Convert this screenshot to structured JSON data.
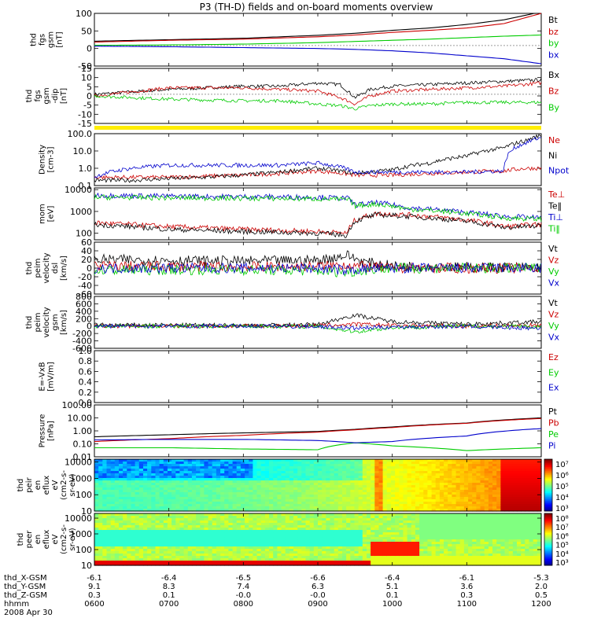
{
  "title": "P3 (TH-D) fields and on-board moments overview",
  "date": "2008 Apr 30",
  "footer": {
    "rows": [
      {
        "label": "thd_X-GSM",
        "values": [
          "-6.1",
          "-6.4",
          "-6.5",
          "-6.6",
          "-6.4",
          "-6.1",
          "-5.3"
        ]
      },
      {
        "label": "thd_Y-GSM",
        "values": [
          "9.1",
          "8.3",
          "7.4",
          "6.3",
          "5.1",
          "3.6",
          "2.0"
        ]
      },
      {
        "label": "thd_Z-GSM",
        "values": [
          "0.3",
          "0.1",
          "-0.0",
          "-0.0",
          "0.1",
          "0.3",
          "0.5"
        ]
      },
      {
        "label": "hhmm",
        "values": [
          "0600",
          "0700",
          "0800",
          "0900",
          "1000",
          "1100",
          "1200"
        ]
      }
    ]
  },
  "chart_data": [
    {
      "type": "line",
      "ylabel": [
        "thd",
        "fgs",
        "gsm",
        "[nT]"
      ],
      "ylim": [
        -70,
        110
      ],
      "yticks": [
        "100",
        "50",
        "0",
        "-50"
      ],
      "legend": [
        {
          "name": "Bt",
          "color": "#000000"
        },
        {
          "name": "bz",
          "color": "#cc0000"
        },
        {
          "name": "by",
          "color": "#00cc00"
        },
        {
          "name": "bx",
          "color": "#0000cc"
        }
      ],
      "x": [
        6.0,
        7.0,
        8.0,
        9.0,
        9.5,
        10.0,
        10.5,
        11.0,
        11.5,
        12.0
      ],
      "series": [
        {
          "name": "Bt",
          "values": [
            15,
            20,
            25,
            35,
            42,
            52,
            60,
            72,
            88,
            115
          ]
        },
        {
          "name": "bz",
          "values": [
            12,
            18,
            22,
            30,
            36,
            45,
            52,
            60,
            75,
            110
          ]
        },
        {
          "name": "by",
          "values": [
            1,
            2,
            5,
            10,
            14,
            18,
            22,
            27,
            32,
            36
          ]
        },
        {
          "name": "bx",
          "values": [
            -2,
            -4,
            -7,
            -10,
            -13,
            -18,
            -25,
            -35,
            -45,
            -62
          ]
        }
      ]
    },
    {
      "type": "line",
      "ylabel": [
        "thd",
        "fgs",
        "gsm",
        "-dip",
        "[nT]"
      ],
      "ylim": [
        -18,
        16
      ],
      "yticks": [
        "15",
        "10",
        "5",
        "0",
        "-5",
        "-10",
        "-15"
      ],
      "legend": [
        {
          "name": "Bx",
          "color": "#000000"
        },
        {
          "name": "Bz",
          "color": "#cc0000"
        },
        {
          "name": "By",
          "color": "#00cc00"
        }
      ],
      "x": [
        6.0,
        7.0,
        8.0,
        8.5,
        9.0,
        9.3,
        9.5,
        9.7,
        10.0,
        10.5,
        11.0,
        11.5,
        12.0
      ],
      "series": [
        {
          "name": "Bx",
          "values": [
            0,
            3,
            5,
            5,
            7,
            6,
            -2,
            3,
            5,
            6,
            7,
            8,
            9
          ]
        },
        {
          "name": "Bz",
          "values": [
            -1,
            4,
            4,
            3,
            2,
            -2,
            -6,
            -1,
            2,
            3,
            4,
            5,
            7
          ]
        },
        {
          "name": "By",
          "values": [
            -1,
            -3,
            -4,
            -4,
            -6,
            -7,
            -9,
            -7,
            -6,
            -6,
            -5,
            -5,
            -5
          ]
        }
      ]
    },
    {
      "type": "line",
      "ylabel": [
        "Density",
        "[cm-3]"
      ],
      "ylim": [
        0.1,
        100.0
      ],
      "yscale": "log",
      "yticks": [
        "100.0",
        "10.0",
        "1.0",
        "0.1"
      ],
      "legend": [
        {
          "name": "Ne",
          "color": "#cc0000"
        },
        {
          "name": "Ni",
          "color": "#000000"
        },
        {
          "name": "Npot",
          "color": "#0000cc"
        }
      ],
      "x": [
        6.0,
        6.5,
        7.0,
        7.5,
        8.0,
        8.5,
        9.0,
        9.5,
        10.0,
        10.5,
        11.0,
        11.5,
        11.8,
        12.0
      ],
      "series": [
        {
          "name": "Ne",
          "values": [
            0.3,
            0.3,
            0.3,
            0.35,
            0.4,
            0.5,
            0.7,
            0.4,
            0.4,
            0.5,
            0.6,
            0.7,
            1.0,
            1.0
          ]
        },
        {
          "name": "Ni",
          "values": [
            0.2,
            0.2,
            0.25,
            0.3,
            0.4,
            0.6,
            1.0,
            0.5,
            0.8,
            2.0,
            5.0,
            15.0,
            40.0,
            80.0
          ]
        },
        {
          "name": "Npot",
          "values": [
            0.3,
            1.0,
            1.5,
            1.5,
            1.5,
            1.5,
            2.0,
            0.6,
            0.6,
            0.6,
            0.6,
            0.7,
            30.0,
            60.0
          ]
        }
      ]
    },
    {
      "type": "line",
      "ylabel": [
        "mom",
        "[eV]"
      ],
      "ylim": [
        50,
        12000
      ],
      "yscale": "log",
      "yticks": [
        "10000",
        "1000",
        "100"
      ],
      "legend": [
        {
          "name": "Te⊥",
          "color": "#cc0000"
        },
        {
          "name": "Te‖",
          "color": "#000000"
        },
        {
          "name": "Ti⊥",
          "color": "#0000cc"
        },
        {
          "name": "Ti‖",
          "color": "#00cc00"
        }
      ],
      "x": [
        6.0,
        7.0,
        8.0,
        9.0,
        9.4,
        9.5,
        9.8,
        10.2,
        11.0,
        11.5,
        12.0
      ],
      "series": [
        {
          "name": "Te⊥",
          "values": [
            300,
            200,
            150,
            120,
            100,
            400,
            800,
            700,
            400,
            200,
            250
          ]
        },
        {
          "name": "Te‖",
          "values": [
            250,
            150,
            120,
            100,
            80,
            350,
            700,
            600,
            350,
            180,
            220
          ]
        },
        {
          "name": "Ti⊥",
          "values": [
            5500,
            5000,
            4800,
            4500,
            4000,
            2000,
            2500,
            1500,
            900,
            600,
            500
          ]
        },
        {
          "name": "Ti‖",
          "values": [
            4500,
            4200,
            4000,
            3800,
            3500,
            1800,
            2200,
            1300,
            800,
            500,
            450
          ]
        }
      ]
    },
    {
      "type": "line",
      "ylabel": [
        "thd",
        "peim",
        "velocity",
        "dsl",
        "[km/s]"
      ],
      "ylim": [
        -60,
        60
      ],
      "yticks": [
        "60",
        "40",
        "20",
        "0",
        "-20",
        "-40",
        "-60"
      ],
      "legend": [
        {
          "name": "Vt",
          "color": "#000000"
        },
        {
          "name": "Vz",
          "color": "#cc0000"
        },
        {
          "name": "Vy",
          "color": "#00cc00"
        },
        {
          "name": "Vx",
          "color": "#0000cc"
        }
      ],
      "x": [
        6.0,
        7.0,
        8.0,
        9.0,
        9.4,
        9.6,
        10.0,
        11.0,
        12.0
      ],
      "series": [
        {
          "name": "Vt",
          "values": [
            20,
            18,
            16,
            18,
            30,
            15,
            5,
            2,
            2
          ]
        },
        {
          "name": "Vz",
          "values": [
            5,
            4,
            3,
            4,
            8,
            4,
            0,
            0,
            0
          ]
        },
        {
          "name": "Vy",
          "values": [
            -5,
            -4,
            -4,
            -6,
            -10,
            -5,
            0,
            0,
            0
          ]
        },
        {
          "name": "Vx",
          "values": [
            0,
            0,
            0,
            0,
            -5,
            -2,
            0,
            0,
            0
          ]
        }
      ]
    },
    {
      "type": "line",
      "ylabel": [
        "thd",
        "peim",
        "velocity",
        "gsm",
        "[km/s]"
      ],
      "ylim": [
        -600,
        800
      ],
      "yticks": [
        "800",
        "600",
        "400",
        "200",
        "0",
        "-200",
        "-400",
        "-600"
      ],
      "legend": [
        {
          "name": "Vt",
          "color": "#000000"
        },
        {
          "name": "Vz",
          "color": "#cc0000"
        },
        {
          "name": "Vy",
          "color": "#00cc00"
        },
        {
          "name": "Vx",
          "color": "#0000cc"
        }
      ],
      "x": [
        6.0,
        7.0,
        8.0,
        9.0,
        9.5,
        10.0,
        11.0,
        12.0
      ],
      "series": [
        {
          "name": "Vt",
          "values": [
            30,
            25,
            20,
            40,
            300,
            120,
            50,
            120
          ]
        },
        {
          "name": "Vz",
          "values": [
            0,
            0,
            0,
            10,
            50,
            20,
            0,
            20
          ]
        },
        {
          "name": "Vy",
          "values": [
            0,
            0,
            0,
            -10,
            -150,
            -40,
            0,
            -20
          ]
        },
        {
          "name": "Vx",
          "values": [
            0,
            0,
            0,
            -10,
            -60,
            -20,
            -10,
            -60
          ]
        }
      ]
    },
    {
      "type": "line",
      "ylabel": [
        "E=-VxB",
        "[mV/m]"
      ],
      "ylim": [
        0.0,
        1.0
      ],
      "yticks": [
        "1.0",
        "0.8",
        "0.6",
        "0.4",
        "0.2",
        "0.0"
      ],
      "legend": [
        {
          "name": "Ez",
          "color": "#cc0000"
        },
        {
          "name": "Ey",
          "color": "#00cc00"
        },
        {
          "name": "Ex",
          "color": "#0000cc"
        }
      ],
      "x": [],
      "series": []
    },
    {
      "type": "line",
      "ylabel": [
        "Pressure",
        "[nPa]"
      ],
      "ylim": [
        0.01,
        100.0
      ],
      "yscale": "log",
      "yticks": [
        "100.00",
        "10.00",
        "1.00",
        "0.10",
        "0.01"
      ],
      "legend": [
        {
          "name": "Pt",
          "color": "#000000"
        },
        {
          "name": "Pb",
          "color": "#cc0000"
        },
        {
          "name": "Pe",
          "color": "#00cc00"
        },
        {
          "name": "Pi",
          "color": "#0000cc"
        }
      ],
      "x": [
        6.0,
        7.0,
        8.0,
        9.0,
        9.5,
        10.0,
        11.0,
        12.0
      ],
      "series": [
        {
          "name": "Pt",
          "values": [
            0.35,
            0.5,
            0.7,
            0.9,
            1.3,
            2.0,
            4.0,
            10.0
          ]
        },
        {
          "name": "Pb",
          "values": [
            0.15,
            0.25,
            0.45,
            0.8,
            1.2,
            1.8,
            3.8,
            9.0
          ]
        },
        {
          "name": "Pe",
          "values": [
            0.05,
            0.05,
            0.04,
            0.035,
            0.12,
            0.07,
            0.03,
            0.05
          ]
        },
        {
          "name": "Pi",
          "values": [
            0.2,
            0.22,
            0.22,
            0.18,
            0.12,
            0.15,
            0.4,
            1.5
          ]
        }
      ]
    },
    {
      "type": "heatmap",
      "ylabel": [
        "thd",
        "peir",
        "en",
        "eflux",
        "eV",
        "(cm2-s-",
        "sr-eV)"
      ],
      "ylim": [
        10,
        15000
      ],
      "yscale": "log",
      "yticks": [
        "10000",
        "1000",
        "100",
        "10"
      ],
      "colorbar": {
        "ticks": [
          "10⁷",
          "10⁶",
          "10⁵",
          "10⁴",
          "10³"
        ]
      }
    },
    {
      "type": "heatmap",
      "ylabel": [
        "thd",
        "peer",
        "en",
        "eflux",
        "eV",
        "(cm2-s-",
        "sr-eV)"
      ],
      "ylim": [
        10,
        20000
      ],
      "yscale": "log",
      "yticks": [
        "10000",
        "1000",
        "100",
        "10"
      ],
      "colorbar": {
        "ticks": [
          "10⁸",
          "10⁷",
          "10⁶",
          "10⁵",
          "10⁴",
          "10³"
        ]
      }
    }
  ]
}
